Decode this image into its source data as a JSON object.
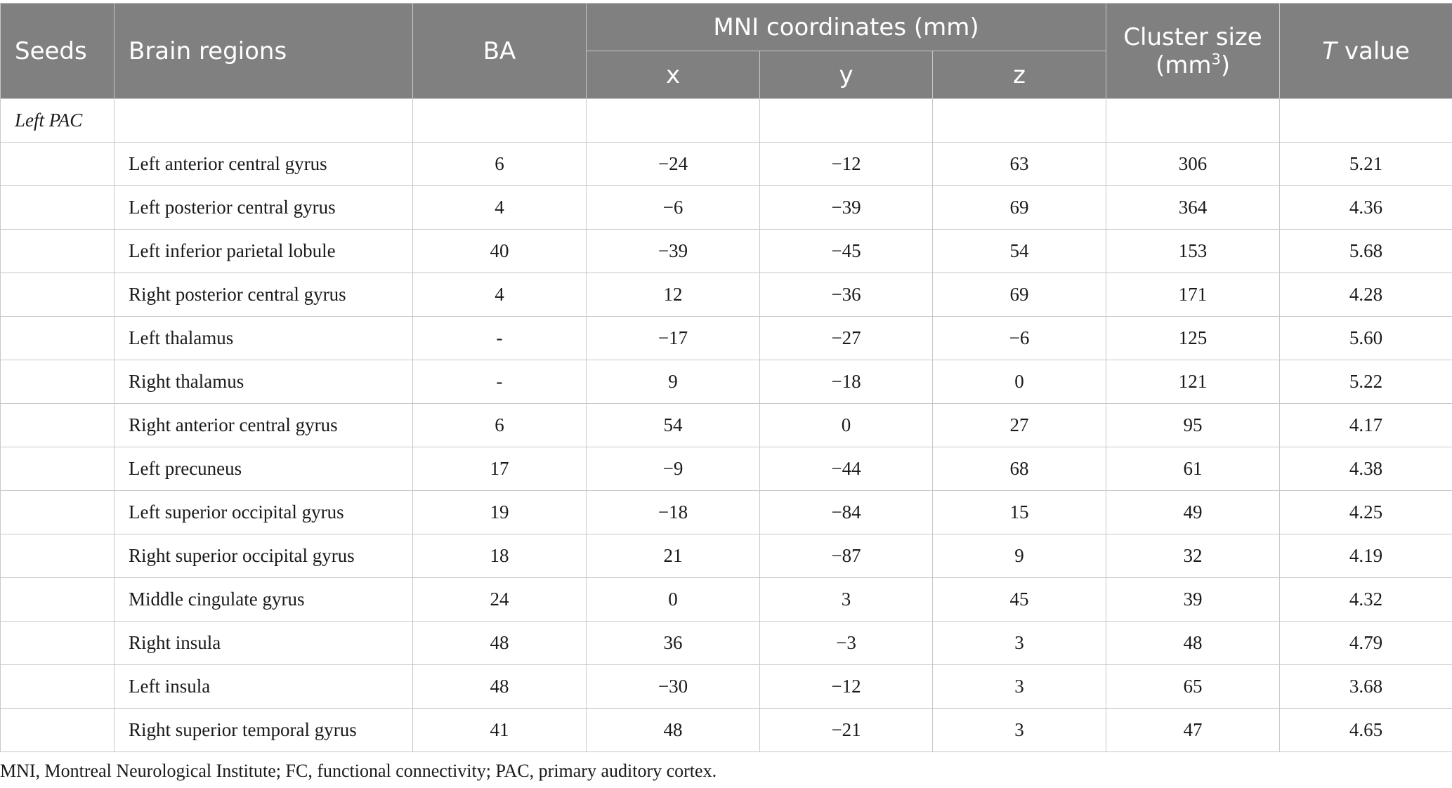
{
  "table": {
    "headers": {
      "seeds": "Seeds",
      "brain_regions": "Brain regions",
      "ba": "BA",
      "mni": "MNI coordinates (mm)",
      "x": "x",
      "y": "y",
      "z": "z",
      "cluster_size": "Cluster size",
      "cluster_unit_open": "(mm",
      "cluster_unit_exp": "3",
      "cluster_unit_close": ")",
      "t_italic": "T",
      "t_rest": " value"
    },
    "seed_group": "Left PAC",
    "rows": [
      {
        "region": "Left anterior central gyrus",
        "ba": "6",
        "x": "−24",
        "y": "−12",
        "z": "63",
        "size": "306",
        "t": "5.21"
      },
      {
        "region": "Left posterior central gyrus",
        "ba": "4",
        "x": "−6",
        "y": "−39",
        "z": "69",
        "size": "364",
        "t": "4.36"
      },
      {
        "region": "Left inferior parietal lobule",
        "ba": "40",
        "x": "−39",
        "y": "−45",
        "z": "54",
        "size": "153",
        "t": "5.68"
      },
      {
        "region": "Right posterior central gyrus",
        "ba": "4",
        "x": "12",
        "y": "−36",
        "z": "69",
        "size": "171",
        "t": "4.28"
      },
      {
        "region": "Left thalamus",
        "ba": "-",
        "x": "−17",
        "y": "−27",
        "z": "−6",
        "size": "125",
        "t": "5.60"
      },
      {
        "region": "Right thalamus",
        "ba": "-",
        "x": "9",
        "y": "−18",
        "z": "0",
        "size": "121",
        "t": "5.22"
      },
      {
        "region": "Right anterior central gyrus",
        "ba": "6",
        "x": "54",
        "y": "0",
        "z": "27",
        "size": "95",
        "t": "4.17"
      },
      {
        "region": "Left precuneus",
        "ba": "17",
        "x": "−9",
        "y": "−44",
        "z": "68",
        "size": "61",
        "t": "4.38"
      },
      {
        "region": "Left superior occipital gyrus",
        "ba": "19",
        "x": "−18",
        "y": "−84",
        "z": "15",
        "size": "49",
        "t": "4.25"
      },
      {
        "region": "Right superior occipital gyrus",
        "ba": "18",
        "x": "21",
        "y": "−87",
        "z": "9",
        "size": "32",
        "t": "4.19"
      },
      {
        "region": "Middle cingulate gyrus",
        "ba": "24",
        "x": "0",
        "y": "3",
        "z": "45",
        "size": "39",
        "t": "4.32"
      },
      {
        "region": "Right insula",
        "ba": "48",
        "x": "36",
        "y": "−3",
        "z": "3",
        "size": "48",
        "t": "4.79"
      },
      {
        "region": "Left insula",
        "ba": "48",
        "x": "−30",
        "y": "−12",
        "z": "3",
        "size": "65",
        "t": "3.68"
      },
      {
        "region": "Right superior temporal gyrus",
        "ba": "41",
        "x": "48",
        "y": "−21",
        "z": "3",
        "size": "47",
        "t": "4.65"
      }
    ],
    "footnote": "MNI, Montreal Neurological Institute; FC, functional connectivity; PAC, primary auditory cortex."
  },
  "colors": {
    "header_bg": "#808080",
    "header_text": "#ffffff",
    "grid_line": "#c8c8c8"
  }
}
